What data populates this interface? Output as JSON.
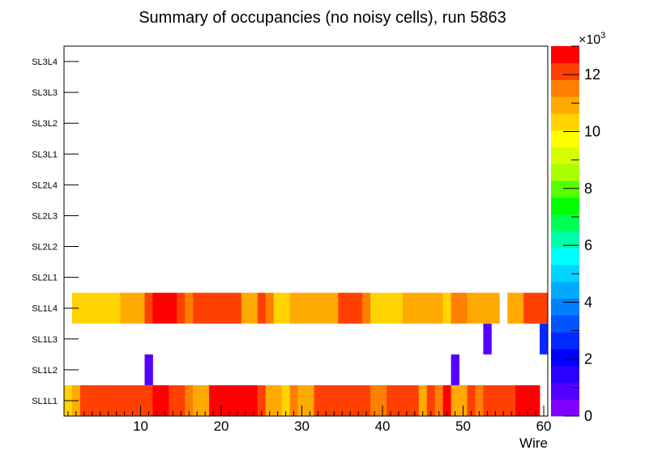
{
  "chart_data": {
    "type": "heatmap",
    "title": "Summary of occupancies (no noisy cells), run 5863",
    "xlabel": "Wire",
    "ylabel": "",
    "xlim": [
      0.5,
      60.5
    ],
    "x_ticks": [
      10,
      20,
      30,
      40,
      50,
      60
    ],
    "x_tick_labels": [
      "10",
      "20",
      "30",
      "40",
      "50",
      "60"
    ],
    "y_categories": [
      "SL1L1",
      "SL1L2",
      "SL1L3",
      "SL1L4",
      "SL2L1",
      "SL2L2",
      "SL2L3",
      "SL2L4",
      "SL3L1",
      "SL3L2",
      "SL3L3",
      "SL3L4"
    ],
    "colorbar": {
      "zlim": [
        0,
        13000
      ],
      "ticks": [
        0,
        2,
        4,
        6,
        8,
        10,
        12
      ],
      "tick_labels": [
        "0",
        "2",
        "4",
        "6",
        "8",
        "10",
        "12"
      ],
      "exponent_label": "×10",
      "exponent": "3",
      "palette": [
        "#7f00ff",
        "#5500ff",
        "#2a00ff",
        "#0000ff",
        "#002aff",
        "#0055ff",
        "#007fff",
        "#00aaff",
        "#00d4ff",
        "#00ffff",
        "#00ffaa",
        "#00ff55",
        "#00ff00",
        "#55ff00",
        "#aaff00",
        "#d4ff00",
        "#ffff00",
        "#ffd400",
        "#ffaa00",
        "#ff7f00",
        "#ff4000",
        "#ff0000"
      ]
    },
    "series": [
      {
        "name": "SL1L1",
        "x": [
          1,
          2,
          3,
          4,
          5,
          6,
          7,
          8,
          9,
          10,
          11,
          12,
          13,
          14,
          15,
          16,
          17,
          18,
          19,
          20,
          21,
          22,
          23,
          24,
          25,
          26,
          27,
          28,
          29,
          30,
          31,
          32,
          33,
          34,
          35,
          36,
          37,
          38,
          39,
          40,
          41,
          42,
          43,
          44,
          45,
          46,
          47,
          48,
          49,
          50,
          51,
          52,
          53,
          54,
          55,
          56,
          57,
          58,
          59
        ],
        "values": [
          10200,
          11200,
          11900,
          11900,
          11900,
          11900,
          11900,
          11900,
          12300,
          11900,
          12300,
          12700,
          12700,
          11900,
          12300,
          11500,
          11200,
          11200,
          12500,
          12500,
          12500,
          12500,
          12500,
          12500,
          11900,
          11200,
          11200,
          10200,
          11500,
          11200,
          11200,
          11900,
          11900,
          11900,
          11900,
          11900,
          11900,
          11900,
          11500,
          11500,
          11900,
          11900,
          11900,
          11900,
          11200,
          11900,
          11500,
          12500,
          11200,
          11200,
          12300,
          11500,
          11900,
          11900,
          11900,
          11900,
          12900,
          12900,
          12900
        ]
      },
      {
        "name": "SL1L2",
        "x": [
          11,
          49
        ],
        "values": [
          800,
          800
        ]
      },
      {
        "name": "SL1L3",
        "x": [
          53,
          60
        ],
        "values": [
          800,
          2400
        ]
      },
      {
        "name": "SL1L4",
        "x": [
          2,
          3,
          4,
          5,
          6,
          7,
          8,
          9,
          10,
          11,
          12,
          13,
          14,
          15,
          16,
          17,
          18,
          19,
          20,
          21,
          22,
          23,
          24,
          25,
          26,
          27,
          28,
          29,
          30,
          31,
          32,
          33,
          34,
          35,
          36,
          37,
          38,
          39,
          40,
          41,
          42,
          43,
          44,
          45,
          46,
          47,
          48,
          49,
          50,
          51,
          52,
          53,
          54,
          56,
          57,
          58,
          59,
          60
        ],
        "values": [
          10200,
          10200,
          10200,
          10200,
          10200,
          10200,
          11200,
          11200,
          11200,
          11900,
          12700,
          12700,
          12700,
          11900,
          11500,
          11900,
          11900,
          11900,
          12300,
          12300,
          11900,
          11200,
          11200,
          11900,
          11500,
          10200,
          10200,
          11200,
          11200,
          11200,
          11200,
          11200,
          11200,
          11900,
          11900,
          11900,
          11500,
          10200,
          10200,
          10200,
          10200,
          11200,
          11200,
          11200,
          10900,
          11200,
          10200,
          11500,
          11500,
          11200,
          11200,
          11200,
          11200,
          11200,
          11200,
          12300,
          12300,
          11900
        ]
      }
    ]
  }
}
